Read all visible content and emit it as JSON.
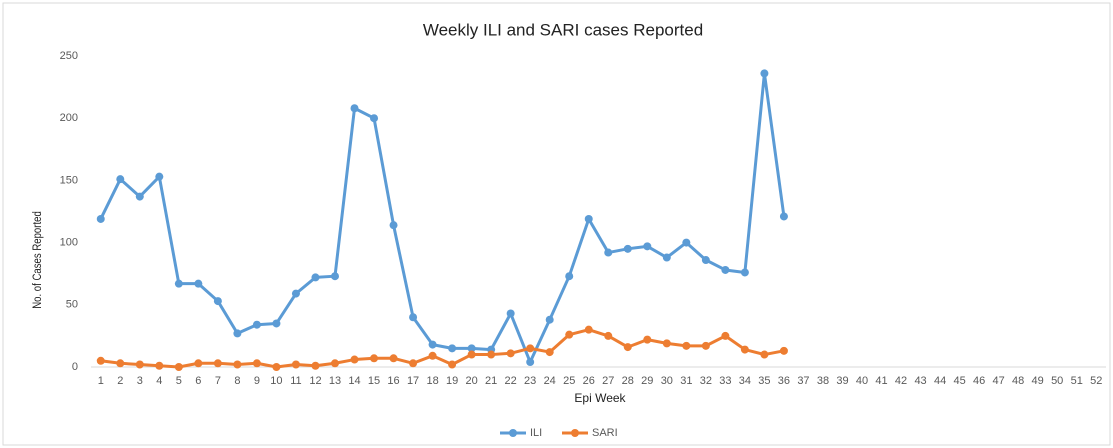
{
  "chart_data": {
    "type": "line",
    "title": "Weekly ILI and SARI cases Reported",
    "x_label": "Epi Week",
    "y_label": "No. of Cases Reported",
    "categories": [
      "1",
      "2",
      "3",
      "4",
      "5",
      "6",
      "7",
      "8",
      "9",
      "10",
      "11",
      "12",
      "13",
      "14",
      "15",
      "16",
      "17",
      "18",
      "19",
      "20",
      "21",
      "22",
      "23",
      "24",
      "25",
      "26",
      "27",
      "28",
      "29",
      "30",
      "31",
      "32",
      "33",
      "34",
      "35",
      "36",
      "37",
      "38",
      "39",
      "40",
      "41",
      "42",
      "43",
      "44",
      "45",
      "46",
      "47",
      "48",
      "49",
      "50",
      "51",
      "52"
    ],
    "series": [
      {
        "name": "ILI",
        "color": "#5b9bd5",
        "values": [
          119,
          151,
          137,
          153,
          67,
          67,
          53,
          27,
          34,
          35,
          59,
          72,
          73,
          208,
          200,
          114,
          40,
          18,
          15,
          15,
          14,
          43,
          4,
          38,
          73,
          119,
          92,
          95,
          97,
          88,
          100,
          86,
          78,
          76,
          236,
          121,
          null,
          null,
          null,
          null,
          null,
          null,
          null,
          null,
          null,
          null,
          null,
          null,
          null,
          null,
          null,
          null
        ]
      },
      {
        "name": "SARI",
        "color": "#ed7d31",
        "values": [
          5,
          3,
          2,
          1,
          0,
          3,
          3,
          2,
          3,
          0,
          2,
          1,
          3,
          6,
          7,
          7,
          3,
          9,
          2,
          10,
          10,
          11,
          15,
          12,
          26,
          30,
          25,
          16,
          22,
          19,
          17,
          17,
          25,
          14,
          10,
          13,
          null,
          null,
          null,
          null,
          null,
          null,
          null,
          null,
          null,
          null,
          null,
          null,
          null,
          null,
          null,
          null
        ]
      }
    ],
    "ylim": [
      0,
      250
    ],
    "yticks": [
      0,
      50,
      100,
      150,
      200,
      250
    ],
    "grid": false,
    "legend": "bottom"
  }
}
